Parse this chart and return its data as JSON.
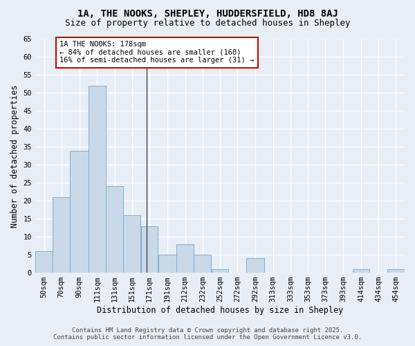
{
  "title_line1": "1A, THE NOOKS, SHEPLEY, HUDDERSFIELD, HD8 8AJ",
  "title_line2": "Size of property relative to detached houses in Shepley",
  "xlabel": "Distribution of detached houses by size in Shepley",
  "ylabel": "Number of detached properties",
  "bar_color": "#c9d9e8",
  "bar_edge_color": "#7bafd4",
  "annotation_box_color": "#ffffff",
  "annotation_box_edge": "#cc0000",
  "annotation_title": "1A THE NOOKS: 178sqm",
  "annotation_line2": "← 84% of detached houses are smaller (160)",
  "annotation_line3": "16% of semi-detached houses are larger (31) →",
  "vline_color": "#444444",
  "background_color": "#e8eef5",
  "grid_color": "#ffffff",
  "categories": [
    "50sqm",
    "70sqm",
    "90sqm",
    "111sqm",
    "131sqm",
    "151sqm",
    "171sqm",
    "191sqm",
    "212sqm",
    "232sqm",
    "252sqm",
    "272sqm",
    "292sqm",
    "313sqm",
    "333sqm",
    "353sqm",
    "373sqm",
    "393sqm",
    "414sqm",
    "434sqm",
    "454sqm"
  ],
  "bin_edges": [
    50,
    70,
    90,
    111,
    131,
    151,
    171,
    191,
    212,
    232,
    252,
    272,
    292,
    313,
    333,
    353,
    373,
    393,
    414,
    434,
    454
  ],
  "bin_widths": [
    20,
    20,
    21,
    20,
    20,
    20,
    20,
    21,
    20,
    20,
    20,
    20,
    21,
    20,
    20,
    20,
    20,
    21,
    20,
    20,
    20
  ],
  "values": [
    6,
    21,
    34,
    52,
    24,
    16,
    13,
    5,
    8,
    5,
    1,
    0,
    4,
    0,
    0,
    0,
    0,
    0,
    1,
    0,
    1
  ],
  "vline_x": 178,
  "ylim": [
    0,
    65
  ],
  "yticks": [
    0,
    5,
    10,
    15,
    20,
    25,
    30,
    35,
    40,
    45,
    50,
    55,
    60,
    65
  ],
  "footer_line1": "Contains HM Land Registry data © Crown copyright and database right 2025.",
  "footer_line2": "Contains public sector information licensed under the Open Government Licence v3.0.",
  "title_fontsize": 10,
  "subtitle_fontsize": 9,
  "axis_label_fontsize": 8.5,
  "tick_fontsize": 7.5,
  "annotation_fontsize": 7.5,
  "footer_fontsize": 6.5
}
